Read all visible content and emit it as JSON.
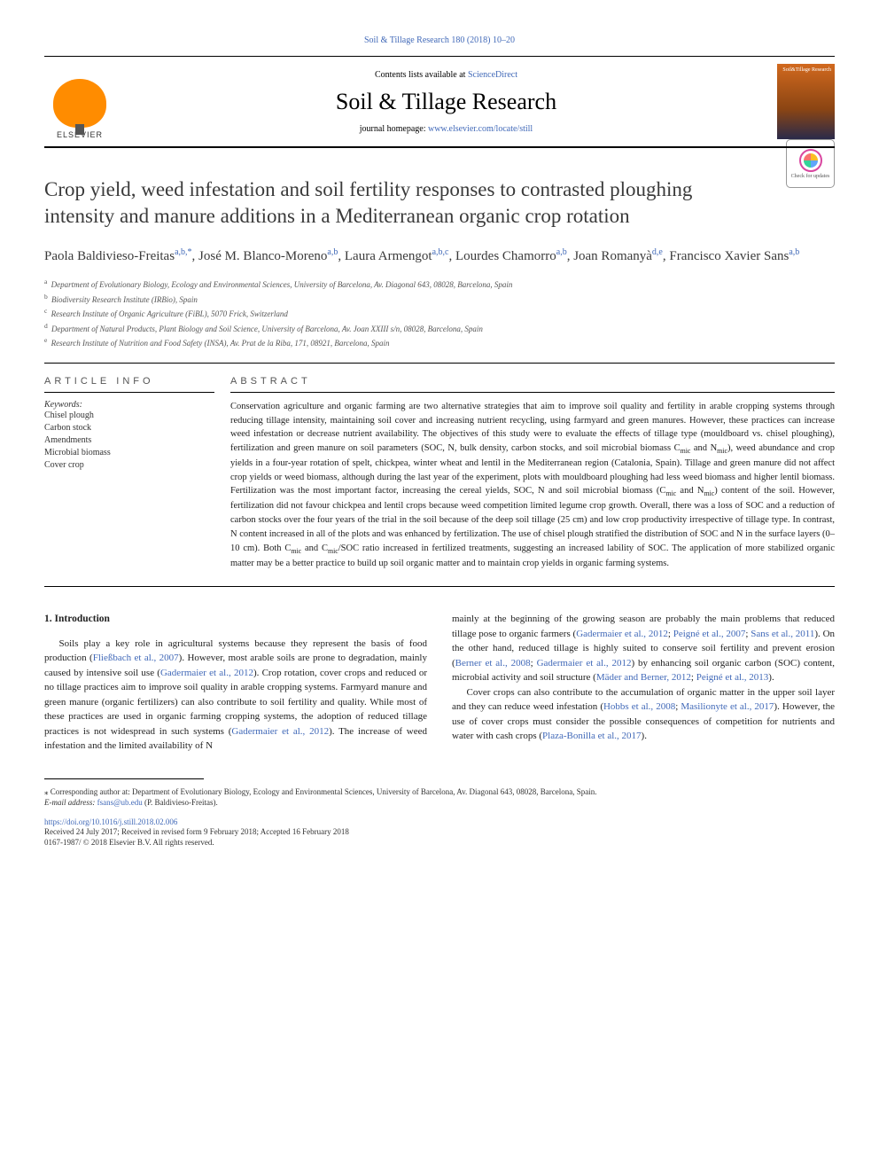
{
  "journal_ref": "Soil & Tillage Research 180 (2018) 10–20",
  "header": {
    "contents_prefix": "Contents lists available at ",
    "contents_link": "ScienceDirect",
    "journal_name": "Soil & Tillage Research",
    "homepage_prefix": "journal homepage: ",
    "homepage_link": "www.elsevier.com/locate/still",
    "publisher": "ELSEVIER",
    "cover_title": "Soil&Tillage Research"
  },
  "check_updates": "Check for updates",
  "title": "Crop yield, weed infestation and soil fertility responses to contrasted ploughing intensity and manure additions in a Mediterranean organic crop rotation",
  "authors_html": "Paola Baldivieso-Freitas<sup><a>a</a>,<a>b</a>,<a>*</a></sup>, José M. Blanco-Moreno<sup><a>a</a>,<a>b</a></sup>, Laura Armengot<sup><a>a</a>,<a>b</a>,<a>c</a></sup>, Lourdes Chamorro<sup><a>a</a>,<a>b</a></sup>, Joan Romanyà<sup><a>d</a>,<a>e</a></sup>, Francisco Xavier Sans<sup><a>a</a>,<a>b</a></sup>",
  "affiliations": [
    {
      "key": "a",
      "text": "Department of Evolutionary Biology, Ecology and Environmental Sciences, University of Barcelona, Av. Diagonal 643, 08028, Barcelona, Spain"
    },
    {
      "key": "b",
      "text": "Biodiversity Research Institute (IRBio), Spain"
    },
    {
      "key": "c",
      "text": "Research Institute of Organic Agriculture (FiBL), 5070 Frick, Switzerland"
    },
    {
      "key": "d",
      "text": "Department of Natural Products, Plant Biology and Soil Science, University of Barcelona, Av. Joan XXIII s/n, 08028, Barcelona, Spain"
    },
    {
      "key": "e",
      "text": "Research Institute of Nutrition and Food Safety (INSA), Av. Prat de la Riba, 171, 08921, Barcelona, Spain"
    }
  ],
  "article_info_label": "ARTICLE INFO",
  "keywords_label": "Keywords:",
  "keywords": [
    "Chisel plough",
    "Carbon stock",
    "Amendments",
    "Microbial biomass",
    "Cover crop"
  ],
  "abstract_label": "ABSTRACT",
  "abstract_text": "Conservation agriculture and organic farming are two alternative strategies that aim to improve soil quality and fertility in arable cropping systems through reducing tillage intensity, maintaining soil cover and increasing nutrient recycling, using farmyard and green manures. However, these practices can increase weed infestation or decrease nutrient availability. The objectives of this study were to evaluate the effects of tillage type (mouldboard vs. chisel ploughing), fertilization and green manure on soil parameters (SOC, N, bulk density, carbon stocks, and soil microbial biomass Cmic and Nmic), weed abundance and crop yields in a four-year rotation of spelt, chickpea, winter wheat and lentil in the Mediterranean region (Catalonia, Spain). Tillage and green manure did not affect crop yields or weed biomass, although during the last year of the experiment, plots with mouldboard ploughing had less weed biomass and higher lentil biomass. Fertilization was the most important factor, increasing the cereal yields, SOC, N and soil microbial biomass (Cmic and Nmic) content of the soil. However, fertilization did not favour chickpea and lentil crops because weed competition limited legume crop growth. Overall, there was a loss of SOC and a reduction of carbon stocks over the four years of the trial in the soil because of the deep soil tillage (25 cm) and low crop productivity irrespective of tillage type. In contrast, N content increased in all of the plots and was enhanced by fertilization. The use of chisel plough stratified the distribution of SOC and N in the surface layers (0–10 cm). Both Cmic and Cmic/SOC ratio increased in fertilized treatments, suggesting an increased lability of SOC. The application of more stabilized organic matter may be a better practice to build up soil organic matter and to maintain crop yields in organic farming systems.",
  "intro_heading": "1. Introduction",
  "intro_p1_html": "Soils play a key role in agricultural systems because they represent the basis of food production (<a>Fließbach et al., 2007</a>). However, most arable soils are prone to degradation, mainly caused by intensive soil use (<a>Gadermaier et al., 2012</a>). Crop rotation, cover crops and reduced or no tillage practices aim to improve soil quality in arable cropping systems. Farmyard manure and green manure (organic fertilizers) can also contribute to soil fertility and quality. While most of these practices are used in organic farming cropping systems, the adoption of reduced tillage practices is not widespread in such systems (<a>Gadermaier et al., 2012</a>). The increase of weed infestation and the limited availability of N",
  "intro_p2_html": "mainly at the beginning of the growing season are probably the main problems that reduced tillage pose to organic farmers (<a>Gadermaier et al., 2012</a>; <a>Peigné et al., 2007</a>; <a>Sans et al., 2011</a>). On the other hand, reduced tillage is highly suited to conserve soil fertility and prevent erosion (<a>Berner et al., 2008</a>; <a>Gadermaier et al., 2012</a>) by enhancing soil organic carbon (SOC) content, microbial activity and soil structure (<a>Mäder and Berner, 2012</a>; <a>Peigné et al., 2013</a>).",
  "intro_p3_html": "Cover crops can also contribute to the accumulation of organic matter in the upper soil layer and they can reduce weed infestation (<a>Hobbs et al., 2008</a>; <a>Masilionyte et al., 2017</a>). However, the use of cover crops must consider the possible consequences of competition for nutrients and water with cash crops (<a>Plaza-Bonilla et al., 2017</a>).",
  "corresponding_html": "⁎ Corresponding author at: Department of Evolutionary Biology, Ecology and Environmental Sciences, University of Barcelona, Av. Diagonal 643, 08028, Barcelona, Spain.",
  "email_label": "E-mail address:",
  "email": "fsans@ub.edu",
  "email_author": "(P. Baldivieso-Freitas).",
  "doi": "https://doi.org/10.1016/j.still.2018.02.006",
  "received": "Received 24 July 2017; Received in revised form 9 February 2018; Accepted 16 February 2018",
  "copyright": "0167-1987/ © 2018 Elsevier B.V. All rights reserved.",
  "colors": {
    "link": "#4169b8",
    "elsevier_orange": "#ff8c00",
    "text": "#222222"
  }
}
